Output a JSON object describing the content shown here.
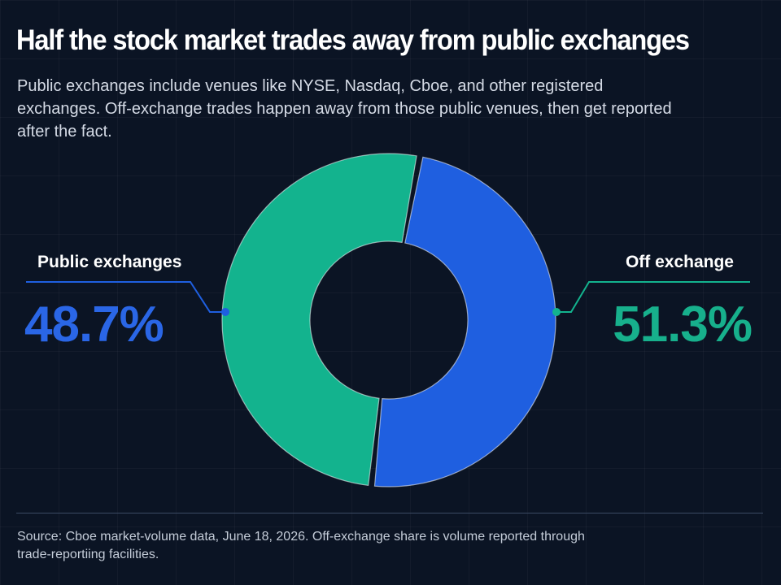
{
  "title": "Half the stock market trades away from public exchanges",
  "subtitle": "Public exchanges include venues like NYSE, Nasdaq, Cboe, and other registered exchanges. Off-exchange trades happen away from those public venues, then get reported after the fact.",
  "source": "Source: Cboe market-volume data, June 18, 2026. Off-exchange share is volume reported through trade-reportiing facilities.",
  "colors": {
    "background": "#0b1424",
    "public": "#1f5fe0",
    "public_text": "#2a66e6",
    "off": "#13b38e",
    "off_text": "#17b08c"
  },
  "chart_data": {
    "type": "pie",
    "variant": "donut",
    "title": "Half the stock market trades away from public exchanges",
    "categories": [
      "Public exchanges",
      "Off exchange"
    ],
    "values": [
      48.7,
      51.3
    ],
    "labels": [
      "48.7%",
      "51.3%"
    ],
    "legend": "none",
    "data_labels": [
      "left",
      "right"
    ]
  }
}
